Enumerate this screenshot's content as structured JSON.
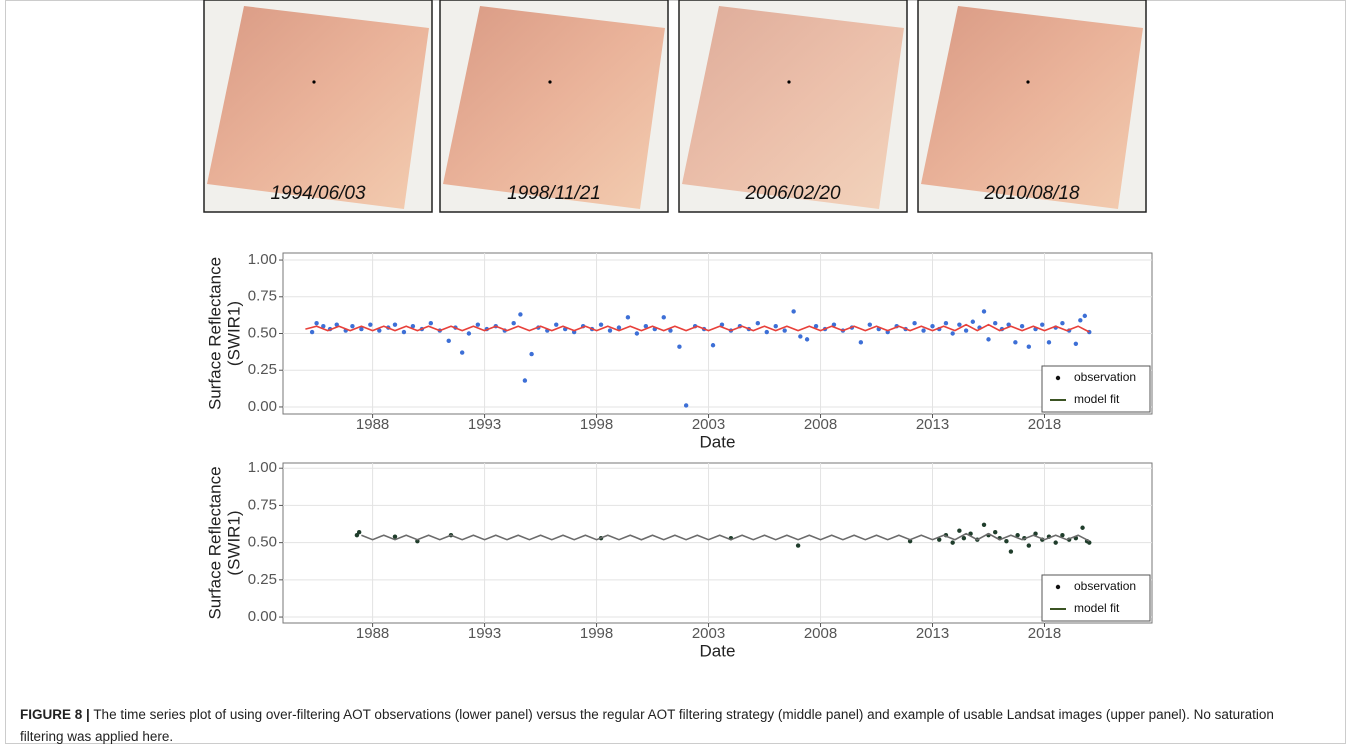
{
  "images": [
    {
      "label": "1994/06/03"
    },
    {
      "label": "1998/11/21"
    },
    {
      "label": "2006/02/20"
    },
    {
      "label": "2010/08/18"
    }
  ],
  "chart_data": [
    {
      "type": "scatter",
      "xlabel": "Date",
      "ylabel": [
        "Surface Reflectance",
        "(SWIR1)"
      ],
      "xlim": [
        1984,
        2022.8
      ],
      "xticks": [
        1988,
        1993,
        1998,
        2003,
        2008,
        2013,
        2018
      ],
      "ylim": [
        -0.048,
        1.048
      ],
      "yticks": [
        {
          "value": 0,
          "label": "0.00"
        },
        {
          "value": 0.25,
          "label": "0.25"
        },
        {
          "value": 0.5,
          "label": "0.50"
        },
        {
          "value": 0.75,
          "label": "0.75"
        },
        {
          "value": 1,
          "label": "1.00"
        }
      ],
      "grid": true,
      "legend": "bottom-right",
      "series": [
        {
          "name": "observation",
          "style": "points",
          "color": "#3d6fd6",
          "legend_color": "#111",
          "x": [
            1985.3,
            1985.5,
            1985.8,
            1986.1,
            1986.4,
            1986.8,
            1987.1,
            1987.5,
            1987.9,
            1988.3,
            1988.7,
            1989.0,
            1989.4,
            1989.8,
            1990.2,
            1990.6,
            1991.0,
            1991.4,
            1991.7,
            1992.0,
            1992.3,
            1992.7,
            1993.1,
            1993.5,
            1993.9,
            1994.3,
            1994.6,
            1994.8,
            1995.1,
            1995.4,
            1995.8,
            1996.2,
            1996.6,
            1997.0,
            1997.4,
            1997.8,
            1998.2,
            1998.6,
            1999.0,
            1999.4,
            1999.8,
            2000.2,
            2000.6,
            2001.0,
            2001.3,
            2001.7,
            2002.0,
            2002.4,
            2002.8,
            2003.2,
            2003.6,
            2004.0,
            2004.4,
            2004.8,
            2005.2,
            2005.6,
            2006.0,
            2006.4,
            2006.8,
            2007.1,
            2007.4,
            2007.8,
            2008.2,
            2008.6,
            2009.0,
            2009.4,
            2009.8,
            2010.2,
            2010.6,
            2011.0,
            2011.4,
            2011.8,
            2012.2,
            2012.6,
            2013.0,
            2013.3,
            2013.6,
            2013.9,
            2014.2,
            2014.5,
            2014.8,
            2015.1,
            2015.3,
            2015.5,
            2015.8,
            2016.1,
            2016.4,
            2016.7,
            2017.0,
            2017.3,
            2017.6,
            2017.9,
            2018.2,
            2018.5,
            2018.8,
            2019.1,
            2019.4,
            2019.6,
            2019.8,
            2020.0
          ],
          "values": [
            0.51,
            0.57,
            0.55,
            0.53,
            0.56,
            0.52,
            0.55,
            0.53,
            0.56,
            0.52,
            0.54,
            0.56,
            0.51,
            0.55,
            0.53,
            0.57,
            0.52,
            0.45,
            0.54,
            0.37,
            0.5,
            0.56,
            0.53,
            0.55,
            0.52,
            0.57,
            0.63,
            0.18,
            0.36,
            0.54,
            0.52,
            0.56,
            0.53,
            0.51,
            0.55,
            0.53,
            0.56,
            0.52,
            0.54,
            0.61,
            0.5,
            0.55,
            0.53,
            0.61,
            0.52,
            0.41,
            0.01,
            0.55,
            0.53,
            0.42,
            0.56,
            0.52,
            0.55,
            0.53,
            0.57,
            0.51,
            0.55,
            0.52,
            0.65,
            0.48,
            0.46,
            0.55,
            0.53,
            0.56,
            0.52,
            0.54,
            0.44,
            0.56,
            0.53,
            0.51,
            0.55,
            0.53,
            0.57,
            0.52,
            0.55,
            0.53,
            0.57,
            0.5,
            0.56,
            0.52,
            0.58,
            0.54,
            0.65,
            0.46,
            0.57,
            0.53,
            0.56,
            0.44,
            0.55,
            0.41,
            0.53,
            0.56,
            0.44,
            0.54,
            0.57,
            0.52,
            0.43,
            0.59,
            0.62,
            0.51
          ]
        },
        {
          "name": "model fit",
          "style": "line",
          "color": "#e8403a",
          "legend_color": "#3b5323",
          "x": [
            1985,
            1985.5,
            1986,
            1986.5,
            1987,
            1987.5,
            1988,
            1988.5,
            1989,
            1989.5,
            1990,
            1990.5,
            1991,
            1991.5,
            1992,
            1992.5,
            1993,
            1993.5,
            1994,
            1994.5,
            1995,
            1995.5,
            1996,
            1996.5,
            1997,
            1997.5,
            1998,
            1998.5,
            1999,
            1999.5,
            2000,
            2000.5,
            2001,
            2001.5,
            2002,
            2002.5,
            2003,
            2003.5,
            2004,
            2004.5,
            2005,
            2005.5,
            2006,
            2006.5,
            2007,
            2007.5,
            2008,
            2008.5,
            2009,
            2009.5,
            2010,
            2010.5,
            2011,
            2011.5,
            2012,
            2012.5,
            2013,
            2013.5,
            2014,
            2014.5,
            2015,
            2015.5,
            2016,
            2016.5,
            2017,
            2017.5,
            2018,
            2018.5,
            2019,
            2019.5,
            2020
          ],
          "values": [
            0.53,
            0.55,
            0.52,
            0.55,
            0.52,
            0.55,
            0.52,
            0.55,
            0.52,
            0.55,
            0.52,
            0.55,
            0.52,
            0.55,
            0.52,
            0.55,
            0.52,
            0.55,
            0.52,
            0.55,
            0.52,
            0.55,
            0.52,
            0.55,
            0.52,
            0.55,
            0.52,
            0.55,
            0.52,
            0.55,
            0.52,
            0.55,
            0.52,
            0.55,
            0.52,
            0.55,
            0.52,
            0.55,
            0.52,
            0.55,
            0.52,
            0.55,
            0.52,
            0.55,
            0.52,
            0.55,
            0.52,
            0.55,
            0.52,
            0.55,
            0.52,
            0.55,
            0.52,
            0.55,
            0.52,
            0.55,
            0.52,
            0.55,
            0.52,
            0.56,
            0.52,
            0.56,
            0.52,
            0.55,
            0.52,
            0.55,
            0.52,
            0.55,
            0.52,
            0.55,
            0.51
          ]
        }
      ]
    },
    {
      "type": "scatter",
      "xlabel": "Date",
      "ylabel": [
        "Surface Reflectance",
        "(SWIR1)"
      ],
      "xlim": [
        1984,
        2022.8
      ],
      "xticks": [
        1988,
        1993,
        1998,
        2003,
        2008,
        2013,
        2018
      ],
      "ylim": [
        -0.04,
        1.035
      ],
      "yticks": [
        {
          "value": 0,
          "label": "0.00"
        },
        {
          "value": 0.25,
          "label": "0.25"
        },
        {
          "value": 0.5,
          "label": "0.50"
        },
        {
          "value": 0.75,
          "label": "0.75"
        },
        {
          "value": 1,
          "label": "1.00"
        }
      ],
      "grid": true,
      "legend": "bottom-right",
      "series": [
        {
          "name": "observation",
          "style": "points",
          "color": "#1f3d2b",
          "legend_color": "#111",
          "x": [
            1987.3,
            1987.4,
            1989.0,
            1990.0,
            1991.5,
            1998.2,
            2004.0,
            2007.0,
            2012.0,
            2013.3,
            2013.6,
            2013.9,
            2014.2,
            2014.4,
            2014.7,
            2015.0,
            2015.3,
            2015.5,
            2015.8,
            2016.0,
            2016.3,
            2016.5,
            2016.8,
            2017.1,
            2017.3,
            2017.6,
            2017.9,
            2018.2,
            2018.5,
            2018.8,
            2019.1,
            2019.4,
            2019.7,
            2019.9,
            2020.0
          ],
          "values": [
            0.55,
            0.57,
            0.54,
            0.51,
            0.55,
            0.53,
            0.53,
            0.48,
            0.51,
            0.52,
            0.55,
            0.5,
            0.58,
            0.53,
            0.56,
            0.52,
            0.62,
            0.55,
            0.57,
            0.53,
            0.51,
            0.44,
            0.55,
            0.53,
            0.48,
            0.56,
            0.52,
            0.54,
            0.5,
            0.55,
            0.52,
            0.53,
            0.6,
            0.51,
            0.5
          ]
        },
        {
          "name": "model fit",
          "style": "line",
          "color": "#6b6b6b",
          "legend_color": "#3b5323",
          "x": [
            1987.5,
            1988,
            1988.5,
            1989,
            1989.5,
            1990,
            1990.5,
            1991,
            1991.5,
            1992,
            1992.5,
            1993,
            1993.5,
            1994,
            1994.5,
            1995,
            1995.5,
            1996,
            1996.5,
            1997,
            1997.5,
            1998,
            1998.5,
            1999,
            1999.5,
            2000,
            2000.5,
            2001,
            2001.5,
            2002,
            2002.5,
            2003,
            2003.5,
            2004,
            2004.5,
            2005,
            2005.5,
            2006,
            2006.5,
            2007,
            2007.5,
            2008,
            2008.5,
            2009,
            2009.5,
            2010,
            2010.5,
            2011,
            2011.5,
            2012,
            2012.5,
            2013,
            2013.5,
            2014,
            2014.5,
            2015,
            2015.5,
            2016,
            2016.5,
            2017,
            2017.5,
            2018,
            2018.5,
            2019,
            2019.5,
            2020
          ],
          "values": [
            0.55,
            0.52,
            0.55,
            0.52,
            0.55,
            0.52,
            0.55,
            0.52,
            0.55,
            0.52,
            0.55,
            0.52,
            0.55,
            0.52,
            0.55,
            0.52,
            0.55,
            0.52,
            0.55,
            0.52,
            0.55,
            0.52,
            0.55,
            0.52,
            0.55,
            0.52,
            0.55,
            0.52,
            0.55,
            0.52,
            0.55,
            0.52,
            0.55,
            0.52,
            0.55,
            0.52,
            0.55,
            0.52,
            0.55,
            0.52,
            0.55,
            0.52,
            0.55,
            0.52,
            0.55,
            0.52,
            0.55,
            0.52,
            0.55,
            0.52,
            0.55,
            0.52,
            0.55,
            0.52,
            0.56,
            0.52,
            0.56,
            0.52,
            0.55,
            0.52,
            0.55,
            0.52,
            0.55,
            0.52,
            0.55,
            0.51
          ]
        }
      ]
    }
  ],
  "caption": {
    "label": "FIGURE 8 |",
    "text": "The time series plot of using over-filtering AOT observations (lower panel) versus the regular AOT filtering strategy (middle panel) and example of usable Landsat images (upper panel). No saturation filtering was applied here."
  }
}
